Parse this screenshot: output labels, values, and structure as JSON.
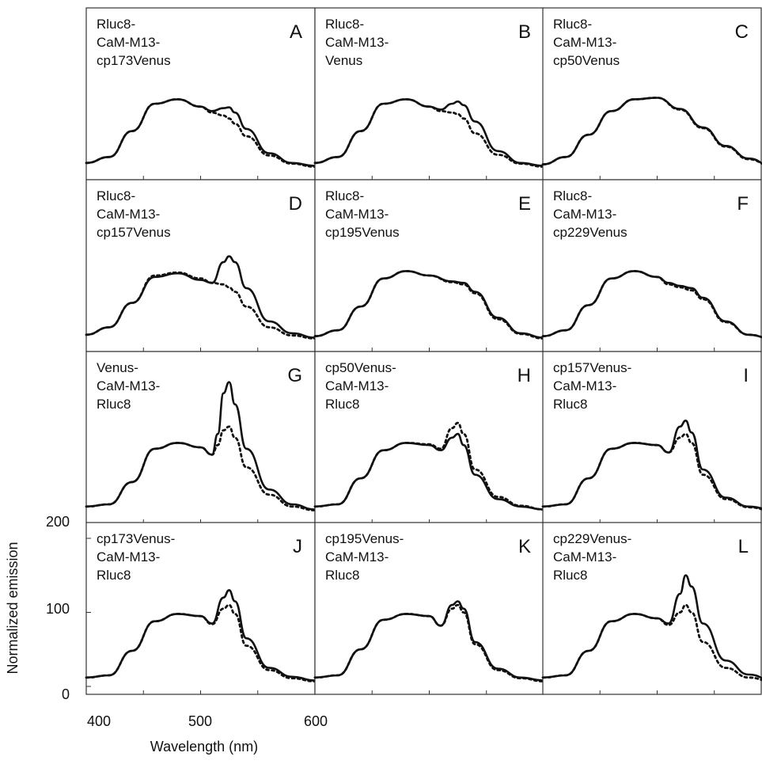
{
  "figure": {
    "ylabel": "Normalized emission",
    "xlabel": "Wavelength (nm)",
    "x_ticks": [
      "400",
      "500",
      "600"
    ],
    "y_ticks": [
      "0",
      "100",
      "200"
    ]
  },
  "colors": {
    "line": "#111111",
    "frame": "#333333",
    "background": "#ffffff"
  },
  "legend": {
    "shown": false
  },
  "chart_data": [
    {
      "type": "line",
      "panel": "A",
      "construct": [
        "Rluc8-",
        "CaM-M13-",
        "cp173Venus"
      ],
      "xlim": [
        400,
        600
      ],
      "ylim": [
        0,
        200
      ],
      "x": [
        400,
        420,
        440,
        460,
        480,
        500,
        510,
        520,
        525,
        530,
        540,
        560,
        580,
        600
      ],
      "series": [
        {
          "style": "solid",
          "values": [
            12,
            20,
            55,
            92,
            98,
            88,
            82,
            86,
            87,
            80,
            58,
            25,
            12,
            8
          ]
        },
        {
          "style": "dotted",
          "values": [
            12,
            20,
            55,
            92,
            98,
            88,
            80,
            76,
            72,
            65,
            48,
            22,
            11,
            7
          ]
        }
      ]
    },
    {
      "type": "line",
      "panel": "B",
      "construct": [
        "Rluc8-",
        "CaM-M13-",
        "Venus"
      ],
      "xlim": [
        400,
        600
      ],
      "ylim": [
        0,
        200
      ],
      "x": [
        400,
        420,
        440,
        460,
        480,
        500,
        510,
        520,
        525,
        530,
        540,
        560,
        580,
        600
      ],
      "series": [
        {
          "style": "solid",
          "values": [
            12,
            20,
            55,
            92,
            98,
            88,
            84,
            92,
            95,
            90,
            68,
            28,
            12,
            8
          ]
        },
        {
          "style": "dotted",
          "values": [
            12,
            20,
            55,
            92,
            98,
            88,
            82,
            80,
            78,
            72,
            52,
            23,
            11,
            7
          ]
        }
      ]
    },
    {
      "type": "line",
      "panel": "C",
      "construct": [
        "Rluc8-",
        "CaM-M13-",
        "cp50Venus"
      ],
      "xlim": [
        400,
        600
      ],
      "ylim": [
        0,
        200
      ],
      "x": [
        400,
        420,
        440,
        460,
        480,
        500,
        520,
        540,
        560,
        580,
        600
      ],
      "series": [
        {
          "style": "solid",
          "values": [
            10,
            20,
            50,
            82,
            98,
            100,
            85,
            60,
            35,
            18,
            8
          ]
        },
        {
          "style": "dotted",
          "values": [
            10,
            20,
            50,
            82,
            98,
            100,
            84,
            59,
            34,
            17,
            8
          ]
        }
      ]
    },
    {
      "type": "line",
      "panel": "D",
      "construct": [
        "Rluc8-",
        "CaM-M13-",
        "cp157Venus"
      ],
      "xlim": [
        400,
        600
      ],
      "ylim": [
        0,
        200
      ],
      "x": [
        400,
        420,
        440,
        460,
        480,
        500,
        510,
        520,
        525,
        530,
        540,
        560,
        580,
        600
      ],
      "series": [
        {
          "style": "solid",
          "values": [
            12,
            22,
            55,
            90,
            95,
            86,
            82,
            110,
            118,
            110,
            75,
            30,
            14,
            8
          ]
        },
        {
          "style": "dotted",
          "values": [
            12,
            22,
            55,
            92,
            96,
            88,
            82,
            80,
            76,
            70,
            50,
            22,
            11,
            7
          ]
        }
      ]
    },
    {
      "type": "line",
      "panel": "E",
      "construct": [
        "Rluc8-",
        "CaM-M13-",
        "cp195Venus"
      ],
      "xlim": [
        400,
        600
      ],
      "ylim": [
        0,
        200
      ],
      "x": [
        400,
        420,
        440,
        460,
        480,
        500,
        520,
        530,
        540,
        560,
        580,
        600
      ],
      "series": [
        {
          "style": "solid",
          "values": [
            10,
            18,
            50,
            88,
            98,
            92,
            84,
            82,
            70,
            35,
            14,
            8
          ]
        },
        {
          "style": "dotted",
          "values": [
            10,
            18,
            50,
            88,
            98,
            92,
            83,
            80,
            68,
            33,
            13,
            7
          ]
        }
      ]
    },
    {
      "type": "line",
      "panel": "F",
      "construct": [
        "Rluc8-",
        "CaM-M13-",
        "cp229Venus"
      ],
      "xlim": [
        400,
        600
      ],
      "ylim": [
        0,
        200
      ],
      "x": [
        400,
        420,
        440,
        460,
        480,
        500,
        510,
        520,
        530,
        540,
        560,
        580,
        600
      ],
      "series": [
        {
          "style": "solid",
          "values": [
            10,
            18,
            52,
            88,
            98,
            90,
            82,
            78,
            75,
            62,
            30,
            12,
            7
          ]
        },
        {
          "style": "dotted",
          "values": [
            10,
            18,
            52,
            88,
            98,
            90,
            80,
            76,
            72,
            60,
            29,
            12,
            7
          ]
        }
      ]
    },
    {
      "type": "line",
      "panel": "G",
      "construct": [
        "Venus-",
        "CaM-M13-",
        "Rluc8"
      ],
      "xlim": [
        400,
        600
      ],
      "ylim": [
        0,
        200
      ],
      "x": [
        400,
        420,
        440,
        460,
        480,
        500,
        510,
        515,
        520,
        525,
        530,
        540,
        560,
        580,
        600
      ],
      "series": [
        {
          "style": "solid",
          "values": [
            12,
            15,
            45,
            90,
            98,
            92,
            82,
            110,
            165,
            180,
            150,
            90,
            35,
            15,
            8
          ]
        },
        {
          "style": "dotted",
          "values": [
            12,
            15,
            45,
            90,
            98,
            92,
            82,
            95,
            115,
            120,
            105,
            65,
            28,
            12,
            7
          ]
        }
      ]
    },
    {
      "type": "line",
      "panel": "H",
      "construct": [
        "cp50Venus-",
        "CaM-M13-",
        "Rluc8"
      ],
      "xlim": [
        400,
        600
      ],
      "ylim": [
        0,
        200
      ],
      "x": [
        400,
        420,
        440,
        460,
        480,
        500,
        510,
        520,
        525,
        530,
        540,
        560,
        580,
        600
      ],
      "series": [
        {
          "style": "solid",
          "values": [
            12,
            15,
            50,
            88,
            98,
            95,
            88,
            105,
            110,
            95,
            55,
            22,
            12,
            8
          ]
        },
        {
          "style": "dotted",
          "values": [
            12,
            15,
            50,
            88,
            98,
            96,
            90,
            118,
            125,
            110,
            62,
            25,
            13,
            8
          ]
        }
      ]
    },
    {
      "type": "line",
      "panel": "I",
      "construct": [
        "cp157Venus-",
        "CaM-M13-",
        "Rluc8"
      ],
      "xlim": [
        400,
        600
      ],
      "ylim": [
        0,
        200
      ],
      "x": [
        400,
        420,
        440,
        460,
        480,
        500,
        510,
        520,
        525,
        530,
        540,
        560,
        580,
        600
      ],
      "series": [
        {
          "style": "solid",
          "values": [
            12,
            15,
            50,
            90,
            98,
            95,
            85,
            120,
            128,
            112,
            62,
            24,
            12,
            8
          ]
        },
        {
          "style": "dotted",
          "values": [
            12,
            15,
            50,
            90,
            98,
            95,
            85,
            105,
            110,
            98,
            55,
            22,
            11,
            7
          ]
        }
      ]
    },
    {
      "type": "line",
      "panel": "J",
      "construct": [
        "cp173Venus-",
        "CaM-M13-",
        "Rluc8"
      ],
      "xlim": [
        400,
        600
      ],
      "ylim": [
        0,
        200
      ],
      "x": [
        400,
        420,
        440,
        460,
        480,
        500,
        510,
        520,
        525,
        530,
        540,
        560,
        580,
        600
      ],
      "series": [
        {
          "style": "solid",
          "values": [
            12,
            15,
            48,
            88,
            98,
            95,
            85,
            120,
            130,
            115,
            65,
            25,
            13,
            8
          ]
        },
        {
          "style": "dotted",
          "values": [
            12,
            15,
            48,
            88,
            98,
            95,
            84,
            105,
            110,
            98,
            55,
            22,
            11,
            7
          ]
        }
      ]
    },
    {
      "type": "line",
      "panel": "K",
      "construct": [
        "cp195Venus-",
        "CaM-M13-",
        "Rluc8"
      ],
      "xlim": [
        400,
        600
      ],
      "ylim": [
        0,
        200
      ],
      "x": [
        400,
        420,
        440,
        460,
        480,
        500,
        510,
        520,
        525,
        530,
        540,
        560,
        580,
        600
      ],
      "series": [
        {
          "style": "solid",
          "values": [
            12,
            15,
            50,
            90,
            98,
            95,
            82,
            110,
            115,
            105,
            60,
            24,
            12,
            8
          ]
        },
        {
          "style": "dotted",
          "values": [
            12,
            15,
            50,
            90,
            98,
            95,
            82,
            105,
            110,
            100,
            57,
            22,
            11,
            7
          ]
        }
      ]
    },
    {
      "type": "line",
      "panel": "L",
      "construct": [
        "cp229Venus-",
        "CaM-M13-",
        "Rluc8"
      ],
      "xlim": [
        400,
        600
      ],
      "ylim": [
        0,
        200
      ],
      "x": [
        400,
        420,
        440,
        460,
        480,
        500,
        510,
        520,
        525,
        530,
        540,
        560,
        580,
        600
      ],
      "series": [
        {
          "style": "solid",
          "values": [
            12,
            15,
            48,
            88,
            98,
            92,
            85,
            125,
            150,
            135,
            85,
            35,
            16,
            9
          ]
        },
        {
          "style": "dotted",
          "values": [
            12,
            15,
            48,
            88,
            98,
            92,
            83,
            100,
            110,
            100,
            60,
            25,
            12,
            7
          ]
        }
      ]
    }
  ]
}
